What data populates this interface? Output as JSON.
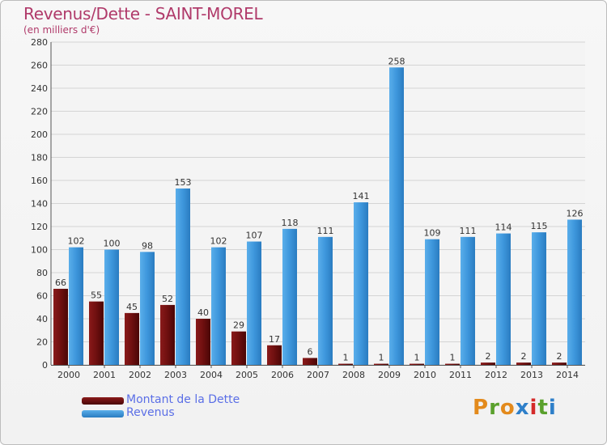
{
  "header": {
    "title": "Revenus/Dette - SAINT-MOREL",
    "subtitle": "(en milliers d'€)"
  },
  "legend": {
    "items": [
      {
        "label": "Montant de la Dette",
        "color": "#6e0f0f"
      },
      {
        "label": "Revenus",
        "color": "#3d96dc"
      }
    ]
  },
  "logo": {
    "letters": [
      "P",
      "r",
      "o",
      "x",
      "i",
      "t",
      "i"
    ],
    "colors": [
      "#e38a1c",
      "#5aa02c",
      "#e38a1c",
      "#2e7fc9",
      "#d42a2a",
      "#5aa02c",
      "#2e7fc9"
    ]
  },
  "chart_data": {
    "type": "bar",
    "title": "Revenus/Dette - SAINT-MOREL",
    "subtitle": "(en milliers d'€)",
    "xlabel": "",
    "ylabel": "",
    "ylim": [
      0,
      280
    ],
    "yticks": [
      0,
      20,
      40,
      60,
      80,
      100,
      120,
      140,
      160,
      180,
      200,
      220,
      240,
      260,
      280
    ],
    "grid": true,
    "legend_position": "bottom-left",
    "categories": [
      "2000",
      "2001",
      "2002",
      "2003",
      "2004",
      "2005",
      "2006",
      "2007",
      "2008",
      "2009",
      "2010",
      "2011",
      "2012",
      "2013",
      "2014"
    ],
    "series": [
      {
        "name": "Montant de la Dette",
        "color": "#6e0f0f",
        "values": [
          66,
          55,
          45,
          52,
          40,
          29,
          17,
          6,
          1,
          1,
          1,
          1,
          2,
          2,
          2
        ]
      },
      {
        "name": "Revenus",
        "color": "#3d96dc",
        "values": [
          102,
          100,
          98,
          153,
          102,
          107,
          118,
          111,
          141,
          258,
          109,
          111,
          114,
          115,
          126
        ]
      }
    ]
  }
}
